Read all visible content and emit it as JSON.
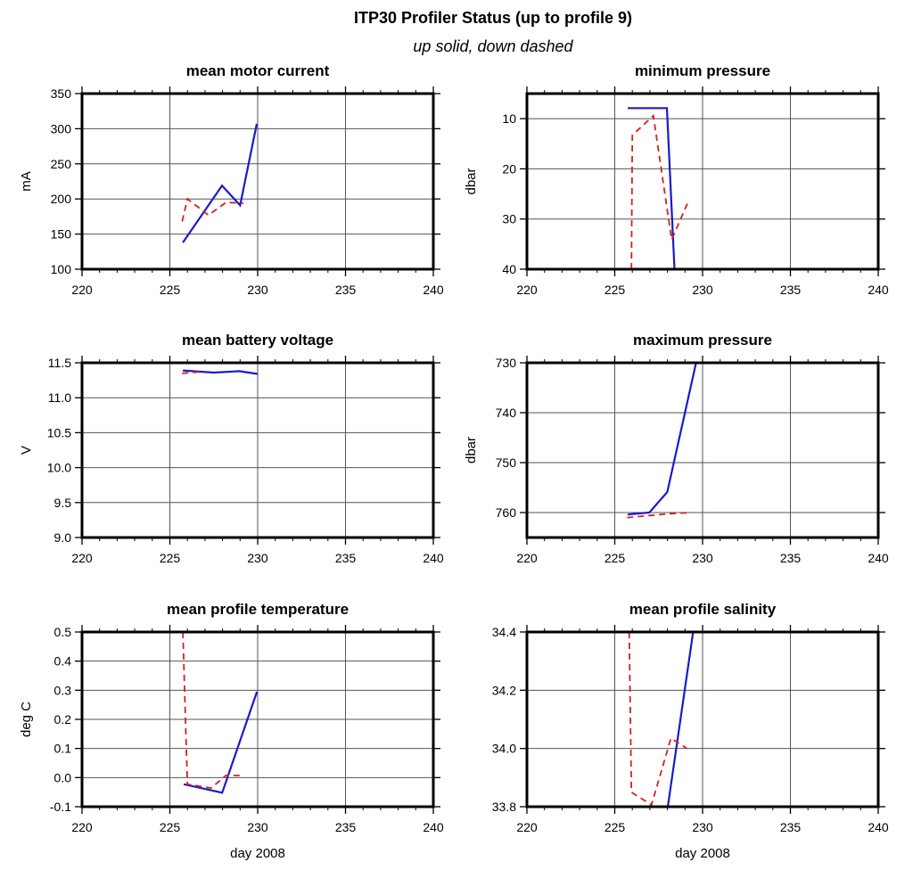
{
  "title": "ITP30 Profiler Status (up to profile 9)",
  "subtitle": "up solid, down dashed",
  "colors": {
    "up": "#1a1acc",
    "down": "#d42020",
    "grid": "#555555",
    "frame": "#000000"
  },
  "chart_data": [
    {
      "type": "line",
      "title": "mean motor current",
      "xlabel": "",
      "ylabel": "mA",
      "xlim": [
        220,
        240
      ],
      "ylim": [
        100,
        350
      ],
      "y_reversed": false,
      "grid": true,
      "xticks": [
        "220",
        "225",
        "230",
        "235",
        "240"
      ],
      "yticks": [
        "100",
        "150",
        "200",
        "250",
        "300",
        "350"
      ],
      "series": [
        {
          "style": "solid",
          "x": [
            225.74,
            227.97,
            229.0,
            229.95
          ],
          "y": [
            138,
            219,
            191,
            307
          ]
        },
        {
          "style": "dashed",
          "x": [
            225.7,
            226.0,
            227.2,
            228.2,
            229.2
          ],
          "y": [
            168,
            200,
            177,
            195,
            194
          ]
        }
      ]
    },
    {
      "type": "line",
      "title": "minimum pressure",
      "xlabel": "",
      "ylabel": "dbar",
      "xlim": [
        220,
        240
      ],
      "ylim": [
        40,
        5
      ],
      "y_reversed": true,
      "grid": true,
      "xticks": [
        "220",
        "225",
        "230",
        "235",
        "240"
      ],
      "yticks": [
        "10",
        "20",
        "30",
        "40"
      ],
      "series": [
        {
          "style": "solid",
          "x": [
            225.74,
            227.97,
            228.4
          ],
          "y": [
            7.9,
            7.9,
            40
          ]
        },
        {
          "style": "dashed",
          "x": [
            225.95,
            226.0,
            227.2,
            228.24,
            228.5,
            229.2
          ],
          "y": [
            40,
            13.3,
            9.4,
            34.1,
            32.0,
            26.4
          ]
        }
      ]
    },
    {
      "type": "line",
      "title": "mean battery voltage",
      "xlabel": "",
      "ylabel": "V",
      "xlim": [
        220,
        240
      ],
      "ylim": [
        9.0,
        11.5
      ],
      "y_reversed": false,
      "grid": true,
      "xticks": [
        "220",
        "225",
        "230",
        "235",
        "240"
      ],
      "yticks": [
        "9.0",
        "9.5",
        "10.0",
        "10.5",
        "11.0",
        "11.5"
      ],
      "series": [
        {
          "style": "solid",
          "x": [
            225.74,
            227.5,
            228.95,
            230.0
          ],
          "y": [
            11.39,
            11.36,
            11.38,
            11.34
          ]
        },
        {
          "style": "dashed",
          "x": [
            225.7,
            226.7
          ],
          "y": [
            11.35,
            11.37
          ]
        }
      ]
    },
    {
      "type": "line",
      "title": "maximum pressure",
      "xlabel": "",
      "ylabel": "dbar",
      "xlim": [
        220,
        240
      ],
      "ylim": [
        765,
        730
      ],
      "y_reversed": true,
      "grid": true,
      "xticks": [
        "220",
        "225",
        "230",
        "235",
        "240"
      ],
      "yticks": [
        "730",
        "740",
        "750",
        "760"
      ],
      "series": [
        {
          "style": "solid",
          "x": [
            225.74,
            226.97,
            227.99,
            229.63
          ],
          "y": [
            760.4,
            760.0,
            755.9,
            730
          ]
        },
        {
          "style": "dashed",
          "x": [
            225.7,
            227.9,
            229.25
          ],
          "y": [
            761.0,
            760.3,
            760.0
          ]
        }
      ]
    },
    {
      "type": "line",
      "title": "mean profile temperature",
      "xlabel": "day 2008",
      "ylabel": "deg C",
      "xlim": [
        220,
        240
      ],
      "ylim": [
        -0.1,
        0.5
      ],
      "y_reversed": false,
      "grid": true,
      "xticks": [
        "220",
        "225",
        "230",
        "235",
        "240"
      ],
      "yticks": [
        "-0.1",
        "0.0",
        "0.1",
        "0.2",
        "0.3",
        "0.4",
        "0.5"
      ],
      "series": [
        {
          "style": "solid",
          "x": [
            225.79,
            227.98,
            229.96
          ],
          "y": [
            -0.023,
            -0.052,
            0.295
          ]
        },
        {
          "style": "dashed",
          "x": [
            225.74,
            226.0,
            227.35,
            228.19,
            229.2
          ],
          "y": [
            0.5,
            -0.023,
            -0.036,
            0.007,
            0.007
          ]
        }
      ]
    },
    {
      "type": "line",
      "title": "mean profile salinity",
      "xlabel": "day 2008",
      "ylabel": "",
      "xlim": [
        220,
        240
      ],
      "ylim": [
        33.8,
        34.4
      ],
      "y_reversed": false,
      "grid": true,
      "xticks": [
        "220",
        "225",
        "230",
        "235",
        "240"
      ],
      "yticks": [
        "33.8",
        "34.0",
        "34.2",
        "34.4"
      ],
      "series": [
        {
          "style": "solid",
          "x": [
            228.02,
            229.46
          ],
          "y": [
            33.8,
            34.4
          ]
        },
        {
          "style": "dashed",
          "x": [
            225.82,
            225.95,
            227.09,
            228.2,
            229.12
          ],
          "y": [
            34.4,
            33.85,
            33.806,
            34.035,
            34.0
          ]
        }
      ]
    }
  ]
}
